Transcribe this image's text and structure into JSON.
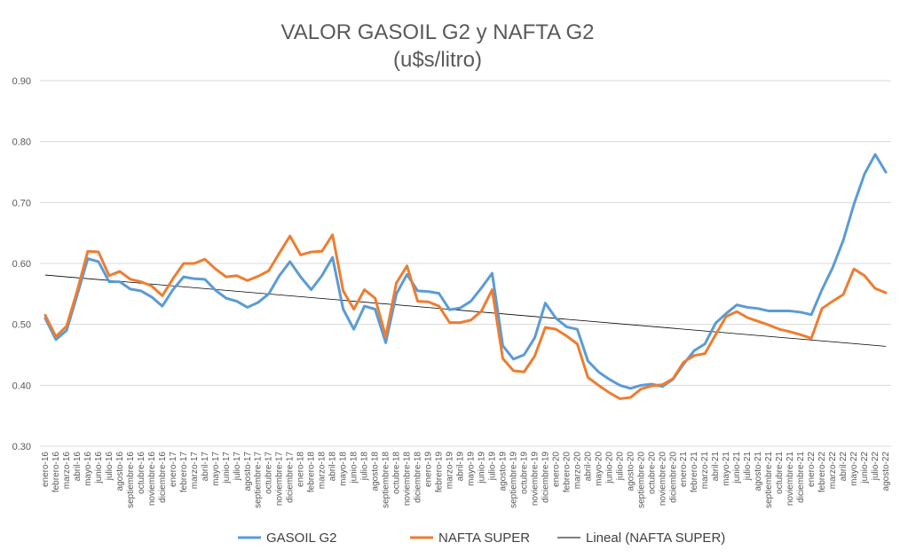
{
  "chart_data": {
    "type": "line",
    "title": "VALOR GASOIL G2 y NAFTA G2",
    "subtitle": "(u$s/litro)",
    "xlabel": "",
    "ylabel": "",
    "ylim": [
      0.3,
      0.9
    ],
    "yticks": [
      "0.30",
      "0.40",
      "0.50",
      "0.60",
      "0.70",
      "0.80",
      "0.90"
    ],
    "grid": true,
    "legend_position": "bottom",
    "categories": [
      "enero-16",
      "febrero-16",
      "marzo-16",
      "abril-16",
      "mayo-16",
      "junio-16",
      "julio-16",
      "agosto-16",
      "septiembre-16",
      "octubre-16",
      "noviembre-16",
      "diciembre-16",
      "enero-17",
      "febrero-17",
      "marzo-17",
      "abril-17",
      "mayo-17",
      "junio-17",
      "julio-17",
      "agosto-17",
      "septiembre-17",
      "octubre-17",
      "noviembre-17",
      "diciembre-17",
      "enero-18",
      "febrero-18",
      "marzo-18",
      "abril-18",
      "mayo-18",
      "junio-18",
      "julio-18",
      "agosto-18",
      "septiembre-18",
      "octubre-18",
      "noviembre-18",
      "diciembre-18",
      "enero-19",
      "febrero-19",
      "marzo-19",
      "abril-19",
      "mayo-19",
      "junio-19",
      "julio-19",
      "agosto-19",
      "septiembre-19",
      "octubre-19",
      "noviembre-19",
      "diciembre-19",
      "enero-20",
      "febrero-20",
      "marzo-20",
      "abril-20",
      "mayo-20",
      "junio-20",
      "julio-20",
      "agosto-20",
      "septiembre-20",
      "octubre-20",
      "noviembre-20",
      "diciembre-20",
      "enero-21",
      "febrero-21",
      "marzo-21",
      "abril-21",
      "mayo-21",
      "junio-21",
      "julio-21",
      "agosto-21",
      "septiembre-21",
      "octubre-21",
      "noviembre-21",
      "diciembre-21",
      "enero-22",
      "febrero-22",
      "marzo-22",
      "abril-22",
      "mayo-22",
      "junio-22",
      "julio-22",
      "agosto-22"
    ],
    "series": [
      {
        "name": "GASOIL G2",
        "color": "#5B9BD5",
        "values": [
          0.51,
          0.475,
          0.49,
          0.548,
          0.608,
          0.603,
          0.57,
          0.57,
          0.558,
          0.555,
          0.545,
          0.53,
          0.557,
          0.578,
          0.575,
          0.574,
          0.556,
          0.543,
          0.538,
          0.528,
          0.536,
          0.55,
          0.58,
          0.603,
          0.578,
          0.557,
          0.58,
          0.61,
          0.525,
          0.492,
          0.53,
          0.525,
          0.47,
          0.55,
          0.582,
          0.555,
          0.554,
          0.551,
          0.524,
          0.527,
          0.538,
          0.56,
          0.584,
          0.465,
          0.443,
          0.45,
          0.478,
          0.535,
          0.51,
          0.496,
          0.492,
          0.44,
          0.422,
          0.41,
          0.4,
          0.395,
          0.4,
          0.402,
          0.398,
          0.41,
          0.435,
          0.457,
          0.468,
          0.502,
          0.518,
          0.532,
          0.528,
          0.526,
          0.522,
          0.522,
          0.522,
          0.52,
          0.516,
          0.557,
          0.593,
          0.638,
          0.697,
          0.747,
          0.779,
          0.75
        ]
      },
      {
        "name": "NAFTA SUPER",
        "color": "#ED7D31",
        "values": [
          0.515,
          0.48,
          0.497,
          0.555,
          0.62,
          0.619,
          0.58,
          0.587,
          0.574,
          0.57,
          0.563,
          0.547,
          0.575,
          0.6,
          0.6,
          0.607,
          0.591,
          0.578,
          0.58,
          0.572,
          0.579,
          0.588,
          0.617,
          0.645,
          0.614,
          0.619,
          0.62,
          0.647,
          0.555,
          0.525,
          0.557,
          0.543,
          0.48,
          0.568,
          0.596,
          0.538,
          0.537,
          0.53,
          0.503,
          0.503,
          0.507,
          0.522,
          0.557,
          0.444,
          0.424,
          0.422,
          0.448,
          0.495,
          0.492,
          0.481,
          0.468,
          0.413,
          0.4,
          0.388,
          0.378,
          0.38,
          0.394,
          0.399,
          0.401,
          0.411,
          0.438,
          0.449,
          0.452,
          0.483,
          0.513,
          0.521,
          0.511,
          0.505,
          0.499,
          0.492,
          0.488,
          0.483,
          0.477,
          0.526,
          0.538,
          0.549,
          0.591,
          0.58,
          0.559,
          0.552
        ]
      }
    ],
    "trendline": {
      "name": "Lineal (NAFTA SUPER)",
      "color": "#000000",
      "start": 0.581,
      "end": 0.464
    }
  }
}
